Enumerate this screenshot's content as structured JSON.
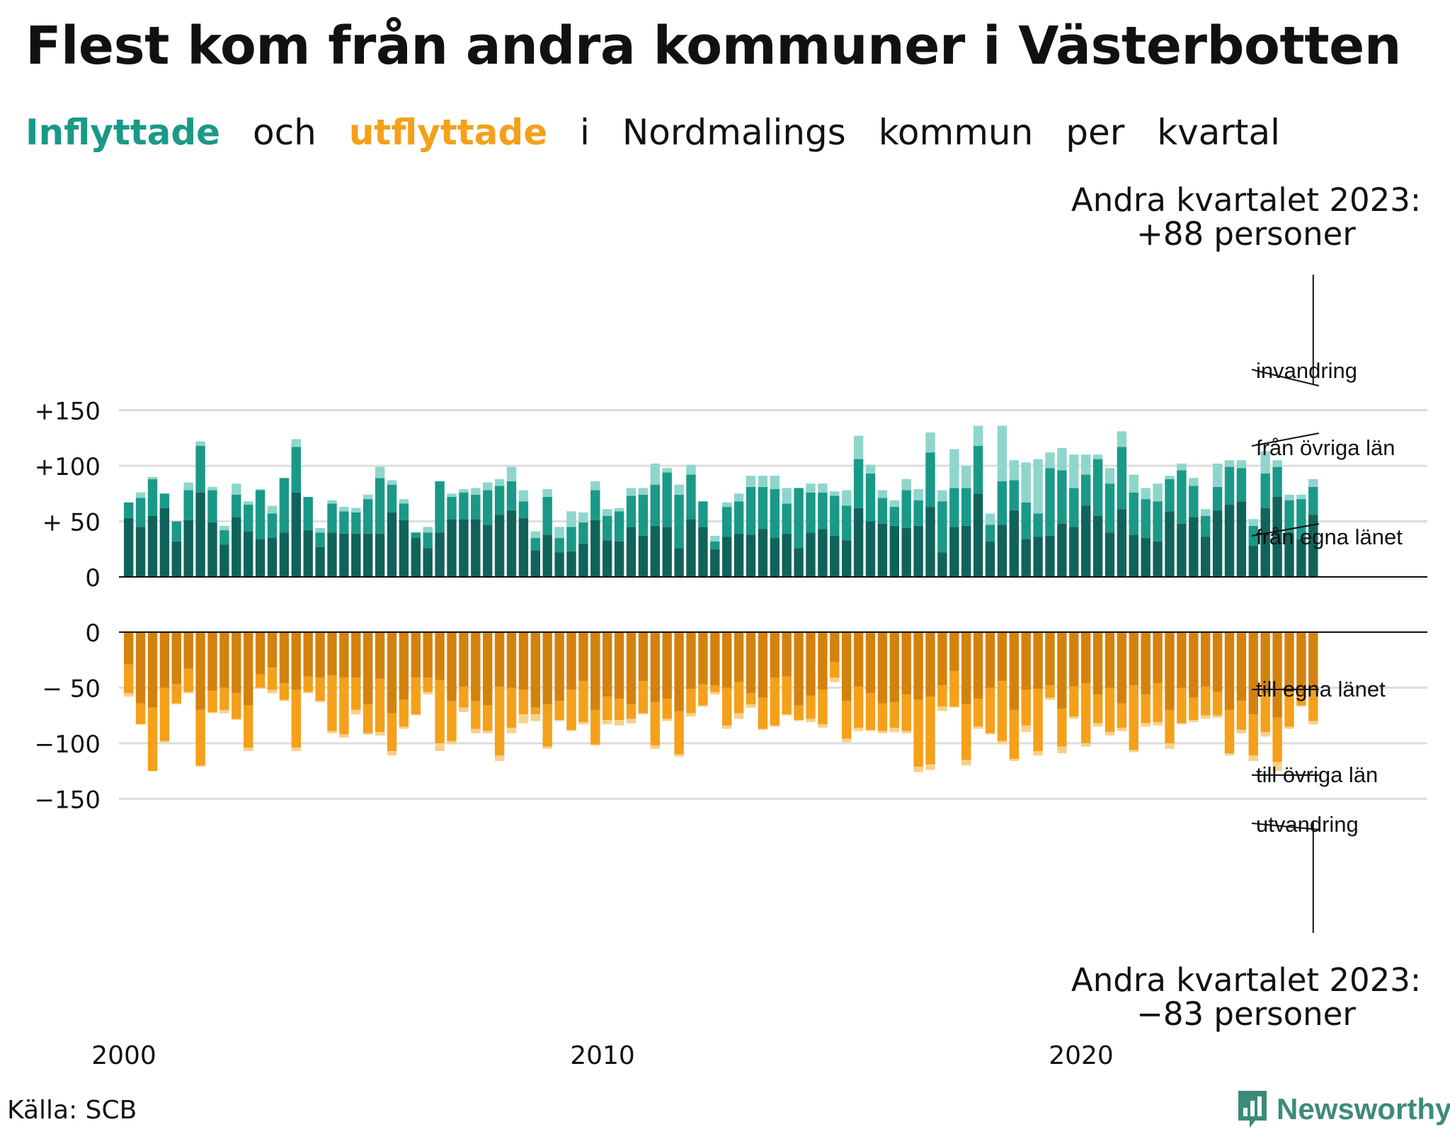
{
  "title": "Flest kom från andra kommuner i Västerbotten",
  "subtitle": {
    "inflyttade": "Inflyttade",
    "och": "och",
    "utflyttade": "utflyttade",
    "rest": [
      "i",
      "Nordmalings",
      "kommun",
      "per",
      "kvartal"
    ]
  },
  "source": "Källa: SCB",
  "brand": "Newsworthy",
  "colors": {
    "in_egna": "#10635a",
    "in_ovriga": "#1a9988",
    "in_invandring": "#8ed6cc",
    "ut_egna": "#d4820e",
    "ut_ovriga": "#f5a01a",
    "ut_utvandring": "#f9d08a",
    "grid": "#dddddd"
  },
  "chart_data": {
    "type": "bar",
    "stacked": true,
    "grid": true,
    "x_ticks": [
      "2000",
      "2010",
      "2020"
    ],
    "top_panel": {
      "ylim": [
        0,
        150
      ],
      "y_ticks": [
        {
          "v": 150,
          "label": "+150"
        },
        {
          "v": 100,
          "label": "+100"
        },
        {
          "v": 50,
          "label": "+ 50"
        },
        {
          "v": 0,
          "label": "0"
        }
      ],
      "annotation": [
        "Andra kvartalet 2023:",
        "+88 personer"
      ],
      "labels": [
        "invandring",
        "från övriga län",
        "från egna länet"
      ],
      "series": [
        {
          "name": "från egna länet",
          "values": [
            53,
            45,
            55,
            62,
            32,
            51,
            76,
            49,
            29,
            54,
            41,
            34,
            35,
            40,
            76,
            42,
            27,
            40,
            39,
            39,
            39,
            39,
            58,
            51,
            35,
            26,
            40,
            52,
            52,
            52,
            47,
            56,
            60,
            53,
            24,
            38,
            22,
            23,
            30,
            51,
            33,
            32,
            45,
            37,
            46,
            45,
            26,
            52,
            45,
            25,
            36,
            39,
            38,
            43,
            35,
            39,
            26,
            40,
            43,
            37,
            33,
            62,
            50,
            48,
            46,
            44,
            46,
            63,
            22,
            45,
            46,
            75,
            32,
            47,
            60,
            34,
            36,
            37,
            48,
            45,
            64,
            55,
            40,
            61,
            38,
            35,
            32,
            59,
            48,
            54,
            36,
            60,
            65,
            68,
            28,
            62,
            72,
            40,
            34,
            56
          ]
        },
        {
          "name": "från övriga län",
          "values": [
            14,
            26,
            33,
            13,
            18,
            27,
            42,
            29,
            13,
            20,
            24,
            44,
            22,
            49,
            41,
            30,
            13,
            26,
            20,
            19,
            31,
            50,
            25,
            15,
            5,
            14,
            46,
            20,
            24,
            22,
            31,
            26,
            26,
            15,
            11,
            34,
            13,
            22,
            19,
            27,
            22,
            27,
            28,
            37,
            37,
            49,
            48,
            40,
            23,
            7,
            27,
            29,
            43,
            38,
            44,
            27,
            54,
            36,
            33,
            36,
            31,
            44,
            43,
            23,
            17,
            34,
            23,
            49,
            46,
            35,
            34,
            43,
            15,
            39,
            27,
            33,
            21,
            61,
            48,
            35,
            28,
            51,
            44,
            56,
            38,
            35,
            36,
            29,
            48,
            28,
            19,
            21,
            34,
            30,
            18,
            31,
            27,
            29,
            36,
            25
          ]
        },
        {
          "name": "invandring",
          "values": [
            0,
            5,
            2,
            0,
            0,
            7,
            4,
            3,
            4,
            10,
            3,
            1,
            7,
            0,
            7,
            0,
            4,
            3,
            4,
            4,
            4,
            10,
            4,
            4,
            0,
            5,
            0,
            3,
            3,
            6,
            7,
            6,
            13,
            10,
            6,
            7,
            10,
            14,
            9,
            8,
            6,
            3,
            7,
            6,
            19,
            4,
            9,
            9,
            0,
            5,
            4,
            7,
            10,
            10,
            12,
            14,
            0,
            8,
            8,
            4,
            14,
            21,
            8,
            7,
            6,
            10,
            10,
            18,
            10,
            35,
            20,
            18,
            10,
            50,
            18,
            36,
            49,
            14,
            20,
            30,
            18,
            4,
            14,
            14,
            16,
            10,
            16,
            3,
            6,
            7,
            6,
            21,
            6,
            7,
            6,
            20,
            6,
            5,
            4,
            7
          ]
        }
      ]
    },
    "bottom_panel": {
      "ylim": [
        -150,
        0
      ],
      "y_ticks": [
        {
          "v": 0,
          "label": "0"
        },
        {
          "v": -50,
          "label": "− 50"
        },
        {
          "v": -100,
          "label": "−100"
        },
        {
          "v": -150,
          "label": "−150"
        }
      ],
      "annotation": [
        "Andra kvartalet 2023:",
        "−83 personer"
      ],
      "labels": [
        "till egna länet",
        "till övriga län",
        "utvandring"
      ],
      "series": [
        {
          "name": "till egna länet",
          "values": [
            -29,
            -64,
            -68,
            -50,
            -47,
            -33,
            -70,
            -53,
            -50,
            -55,
            -66,
            -38,
            -32,
            -46,
            -52,
            -40,
            -41,
            -39,
            -41,
            -41,
            -65,
            -42,
            -73,
            -61,
            -41,
            -41,
            -43,
            -62,
            -49,
            -62,
            -66,
            -49,
            -50,
            -52,
            -68,
            -65,
            -62,
            -52,
            -44,
            -70,
            -58,
            -60,
            -65,
            -44,
            -63,
            -60,
            -71,
            -51,
            -47,
            -48,
            -50,
            -45,
            -55,
            -59,
            -41,
            -40,
            -66,
            -57,
            -52,
            -27,
            -62,
            -49,
            -55,
            -64,
            -63,
            -56,
            -61,
            -58,
            -48,
            -35,
            -65,
            -60,
            -50,
            -44,
            -70,
            -52,
            -51,
            -48,
            -69,
            -49,
            -46,
            -56,
            -50,
            -64,
            -48,
            -56,
            -46,
            -70,
            -50,
            -59,
            -49,
            -54,
            -70,
            -62,
            -74,
            -55,
            -77,
            -54,
            -55,
            -51
          ]
        },
        {
          "name": "till övriga län",
          "values": [
            -26,
            -19,
            -57,
            -48,
            -17,
            -21,
            -50,
            -19,
            -20,
            -23,
            -38,
            -12,
            -20,
            -15,
            -52,
            -14,
            -21,
            -50,
            -51,
            -29,
            -26,
            -48,
            -34,
            -24,
            -33,
            -13,
            -57,
            -36,
            -19,
            -25,
            -23,
            -62,
            -36,
            -22,
            -6,
            -38,
            -17,
            -36,
            -37,
            -31,
            -21,
            -19,
            -13,
            -29,
            -39,
            -18,
            -39,
            -22,
            -19,
            -6,
            -34,
            -28,
            -10,
            -28,
            -43,
            -34,
            -13,
            -21,
            -31,
            -14,
            -34,
            -37,
            -33,
            -25,
            -23,
            -33,
            -60,
            -61,
            -19,
            -32,
            -50,
            -25,
            -41,
            -54,
            -44,
            -32,
            -56,
            -11,
            -34,
            -27,
            -54,
            -26,
            -40,
            -22,
            -58,
            -26,
            -35,
            -30,
            -32,
            -20,
            -26,
            -21,
            -39,
            -26,
            -37,
            -35,
            -40,
            -31,
            -11,
            -29
          ]
        },
        {
          "name": "utvandring",
          "values": [
            -3,
            0,
            0,
            -1,
            -1,
            -1,
            -1,
            -1,
            -3,
            -1,
            -3,
            -1,
            -3,
            -1,
            -3,
            -1,
            -1,
            -2,
            -3,
            -4,
            -1,
            -3,
            -4,
            -2,
            -1,
            -2,
            -7,
            -3,
            -4,
            -4,
            -2,
            -5,
            -5,
            -8,
            -6,
            -2,
            -1,
            -1,
            -2,
            -1,
            -4,
            -5,
            -4,
            -1,
            -3,
            -2,
            -2,
            -3,
            -1,
            -2,
            -3,
            -5,
            -3,
            -1,
            -1,
            -1,
            -1,
            -3,
            -3,
            -4,
            -3,
            -3,
            -1,
            -2,
            -4,
            -2,
            -5,
            -5,
            -4,
            -1,
            -5,
            -2,
            -1,
            -3,
            -2,
            -6,
            -4,
            -2,
            -6,
            -2,
            -3,
            -3,
            -3,
            -3,
            -2,
            -3,
            -3,
            -5,
            -1,
            -2,
            -3,
            -2,
            -2,
            -3,
            -5,
            -4,
            -8,
            -2,
            -1,
            -3
          ]
        }
      ]
    }
  }
}
